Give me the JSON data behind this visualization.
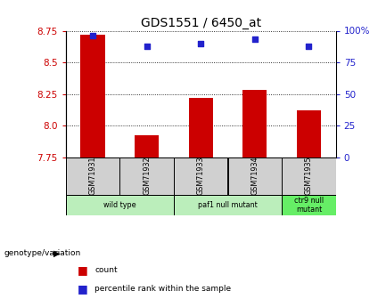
{
  "title": "GDS1551 / 6450_at",
  "samples": [
    "GSM71931",
    "GSM71932",
    "GSM71933",
    "GSM71934",
    "GSM71935"
  ],
  "bar_values": [
    8.72,
    7.92,
    8.22,
    8.28,
    8.12
  ],
  "percentile_values": [
    96,
    88,
    90,
    93,
    88
  ],
  "ylim_left": [
    7.75,
    8.75
  ],
  "ylim_right": [
    0,
    100
  ],
  "yticks_left": [
    7.75,
    8.0,
    8.25,
    8.5,
    8.75
  ],
  "yticks_right": [
    0,
    25,
    50,
    75,
    100
  ],
  "bar_color": "#cc0000",
  "point_color": "#2222cc",
  "bar_bottom": 7.75,
  "groups": [
    {
      "label": "wild type",
      "indices": [
        0,
        1
      ],
      "color": "#bbeebb"
    },
    {
      "label": "paf1 null mutant",
      "indices": [
        2,
        3
      ],
      "color": "#bbeebb"
    },
    {
      "label": "ctr9 null\nmutant",
      "indices": [
        4
      ],
      "color": "#66ee66"
    }
  ],
  "group_label": "genotype/variation",
  "legend_count_label": "count",
  "legend_percentile_label": "percentile rank within the sample",
  "tick_label_color_left": "#cc0000",
  "tick_label_color_right": "#2222cc",
  "grid_color": "#000000",
  "background_color": "#ffffff",
  "plot_bg_color": "#ffffff",
  "sample_box_color": "#d0d0d0"
}
